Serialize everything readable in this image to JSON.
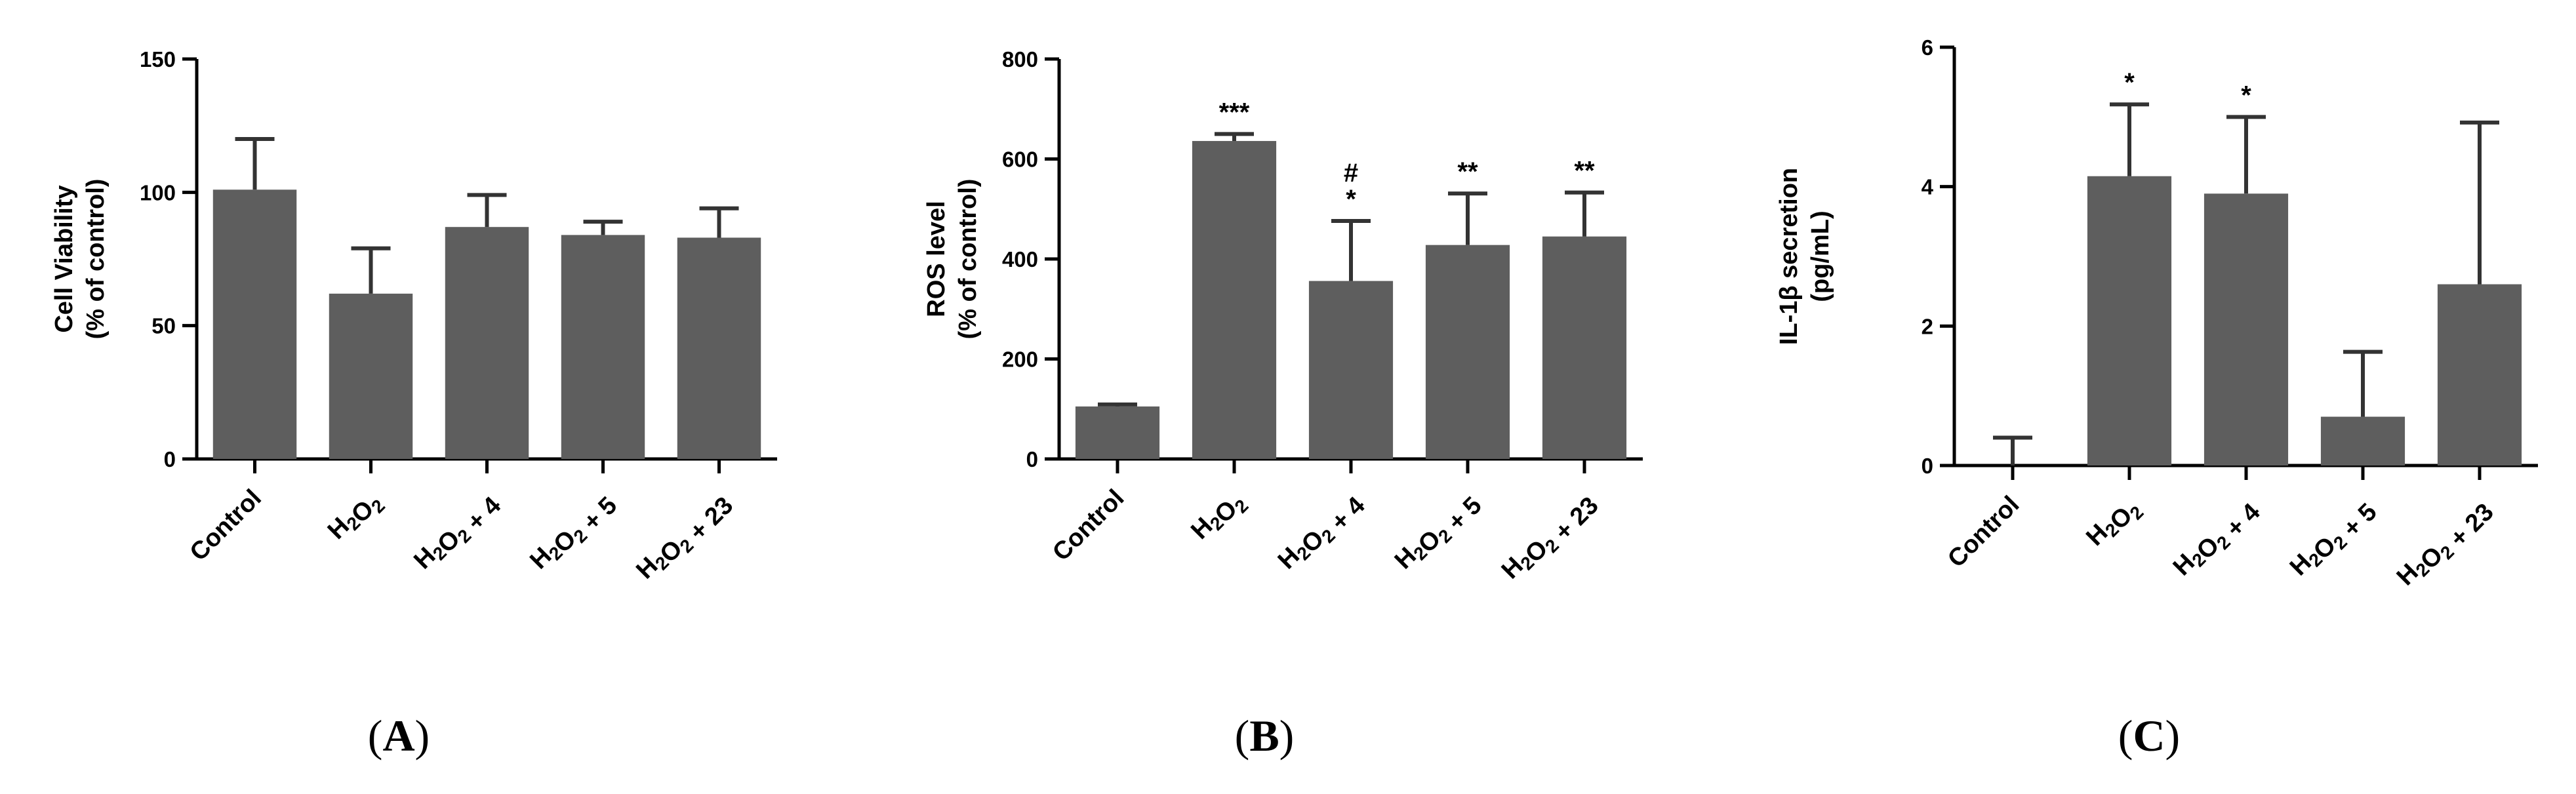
{
  "colors": {
    "bar": "#5e5e5e",
    "axis": "#000000",
    "error_bar": "#333333"
  },
  "chart_data": [
    {
      "type": "bar",
      "panel_label": "(A)",
      "categories": [
        "Control",
        "H2O2",
        "H2O2 + 4",
        "H2O2 + 5",
        "H2O2 + 23"
      ],
      "values": [
        101,
        62,
        87,
        84,
        83
      ],
      "errors": [
        19,
        17,
        12,
        5,
        11
      ],
      "significance": [
        "",
        "",
        "",
        "",
        ""
      ],
      "ylabel": [
        "Cell Viability",
        "(% of control)"
      ],
      "ylim": [
        0,
        150
      ],
      "yticks": [
        0,
        50,
        100,
        150
      ],
      "grid": false
    },
    {
      "type": "bar",
      "panel_label": "(B)",
      "categories": [
        "Control",
        "H2O2",
        "H2O2 + 4",
        "H2O2 + 5",
        "H2O2 + 23"
      ],
      "values": [
        105,
        636,
        356,
        428,
        445
      ],
      "errors": [
        4,
        14,
        120,
        103,
        88
      ],
      "significance": [
        "",
        "***",
        "#\n*",
        "**",
        "**"
      ],
      "ylabel": [
        "ROS level",
        "(% of control)"
      ],
      "ylim": [
        0,
        800
      ],
      "yticks": [
        0,
        200,
        400,
        600,
        800
      ],
      "grid": false
    },
    {
      "type": "bar",
      "panel_label": "(C)",
      "categories": [
        "Control",
        "H2O2",
        "H2O2 + 4",
        "H2O2 + 5",
        "H2O2 + 23"
      ],
      "values": [
        0,
        4.15,
        3.9,
        0.7,
        2.6
      ],
      "errors": [
        0.4,
        1.03,
        1.1,
        0.93,
        2.32
      ],
      "significance": [
        "",
        "*",
        "*",
        "",
        ""
      ],
      "ylabel": [
        "IL-1β secretion",
        "(pg/mL)"
      ],
      "ylim": [
        0,
        6
      ],
      "yticks": [
        0,
        2,
        4,
        6
      ],
      "grid": false
    }
  ]
}
